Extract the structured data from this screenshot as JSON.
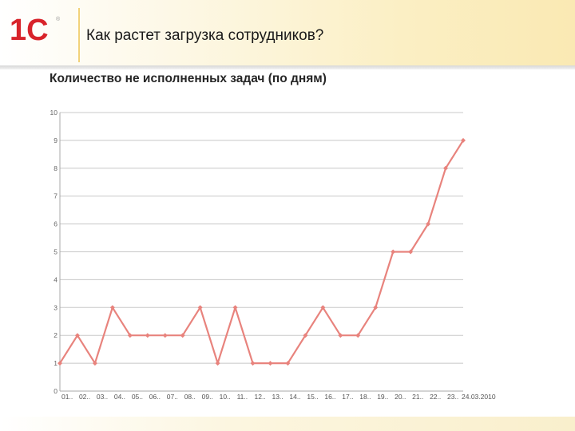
{
  "header": {
    "title": "Как растет загрузка сотрудников?",
    "logo_text": "1С",
    "logo_mark": "®"
  },
  "colors": {
    "brand_red": "#d8232a",
    "line": "#e8837d",
    "grid": "#c8c8c8"
  },
  "chart_data": {
    "type": "line",
    "title": "Количество не исполненных задач (по дням)",
    "xlabel": "",
    "ylabel": "",
    "ylim": [
      0,
      10
    ],
    "y_ticks": [
      "0",
      "1",
      "2",
      "3",
      "4",
      "5",
      "6",
      "7",
      "8",
      "9",
      "10"
    ],
    "grid": true,
    "categories": [
      "01..",
      "02..",
      "03..",
      "04..",
      "05..",
      "06..",
      "07..",
      "08..",
      "09..",
      "10..",
      "11..",
      "12..",
      "13..",
      "14..",
      "15..",
      "16..",
      "17..",
      "18..",
      "19..",
      "20..",
      "21..",
      "22..",
      "23..",
      "24.03.2010"
    ],
    "series": [
      {
        "values": [
          1,
          2,
          1,
          3,
          2,
          2,
          2,
          2,
          3,
          1,
          3,
          1,
          1,
          1,
          2,
          3,
          2,
          2,
          3,
          5,
          5,
          6,
          8,
          9
        ]
      }
    ]
  }
}
